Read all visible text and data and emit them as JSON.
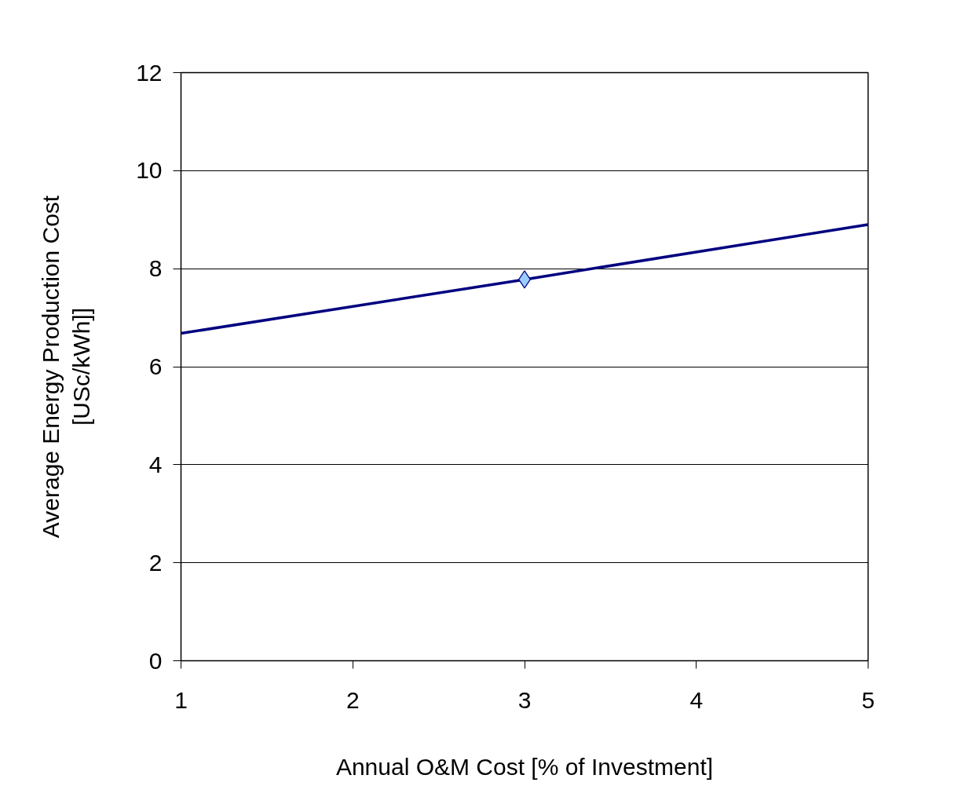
{
  "chart_data": {
    "type": "line",
    "xlabel": "Annual O&M Cost [% of Investment]",
    "ylabel": "Average Energy Production Cost\n[USc/kWh]]",
    "series": [
      {
        "color": "#000080",
        "x": [
          1,
          3,
          5
        ],
        "values": [
          6.68,
          7.78,
          8.9
        ],
        "marker": "none"
      },
      {
        "type": "scatter",
        "color": "#99ccff",
        "x": [
          3
        ],
        "values": [
          7.78
        ],
        "marker": "diamond"
      }
    ],
    "xlim": [
      1,
      5
    ],
    "xticks": [
      1,
      2,
      3,
      4,
      5
    ],
    "ylim": [
      0,
      12
    ],
    "yticks": [
      0,
      2,
      4,
      6,
      8,
      10,
      12
    ],
    "grid": "y"
  }
}
